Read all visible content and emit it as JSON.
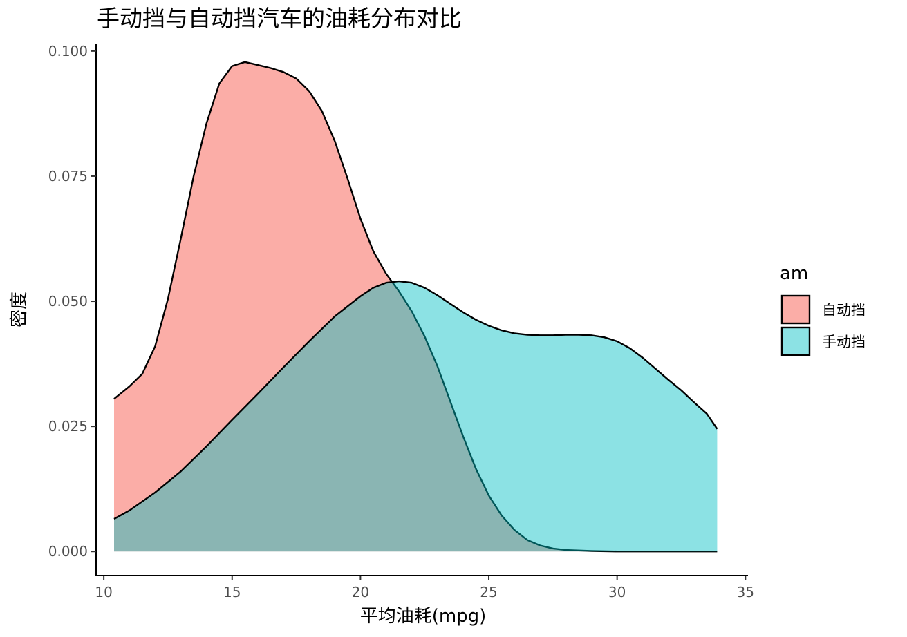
{
  "chart_data": {
    "type": "area",
    "subtype": "density",
    "title": "手动挡与自动挡汽车的油耗分布对比",
    "xlabel": "平均油耗(mpg)",
    "ylabel": "密度",
    "xlim": [
      9.7,
      35.1
    ],
    "ylim": [
      -0.0048,
      0.1015
    ],
    "x_ticks": [
      10,
      15,
      20,
      25,
      30,
      35
    ],
    "x_tick_labels": [
      "10",
      "15",
      "20",
      "25",
      "30",
      "35"
    ],
    "y_ticks": [
      0,
      0.025,
      0.05,
      0.075,
      0.1
    ],
    "y_tick_labels": [
      "0.000",
      "0.025",
      "0.050",
      "0.075",
      "0.100"
    ],
    "grid": false,
    "legend": {
      "title": "am",
      "position": "right"
    },
    "series": [
      {
        "name": "自动挡",
        "color": "#F8766D",
        "opacity": 0.6,
        "x": [
          10.4,
          11.0,
          11.5,
          12.0,
          12.5,
          13.0,
          13.5,
          14.0,
          14.5,
          15.0,
          15.5,
          16.0,
          16.5,
          17.0,
          17.5,
          18.0,
          18.5,
          19.0,
          19.5,
          20.0,
          20.5,
          21.0,
          21.5,
          22.0,
          22.5,
          23.0,
          23.5,
          24.0,
          24.5,
          25.0,
          25.5,
          26.0,
          26.5,
          27.0,
          27.5,
          28.0,
          29.0,
          30.0,
          31.0,
          32.0,
          33.0,
          33.9
        ],
        "y": [
          0.0305,
          0.033,
          0.0355,
          0.041,
          0.0505,
          0.0625,
          0.075,
          0.0855,
          0.0935,
          0.097,
          0.0978,
          0.0972,
          0.0966,
          0.0958,
          0.0945,
          0.092,
          0.088,
          0.082,
          0.0745,
          0.0665,
          0.06,
          0.0555,
          0.052,
          0.048,
          0.043,
          0.037,
          0.03,
          0.023,
          0.0165,
          0.0112,
          0.0072,
          0.0043,
          0.0023,
          0.0012,
          0.0006,
          0.0003,
          0.0001,
          0.0,
          0.0,
          0.0,
          0.0,
          0.0
        ]
      },
      {
        "name": "手动挡",
        "color": "#00BFC4",
        "opacity": 0.45,
        "x": [
          10.4,
          11.0,
          12.0,
          13.0,
          14.0,
          15.0,
          16.0,
          17.0,
          18.0,
          19.0,
          20.0,
          20.5,
          21.0,
          21.5,
          22.0,
          22.5,
          23.0,
          23.5,
          24.0,
          24.5,
          25.0,
          25.5,
          26.0,
          26.5,
          27.0,
          27.5,
          28.0,
          28.5,
          29.0,
          29.5,
          30.0,
          30.5,
          31.0,
          31.5,
          32.0,
          32.5,
          33.0,
          33.5,
          33.9
        ],
        "y": [
          0.0065,
          0.0082,
          0.0118,
          0.016,
          0.021,
          0.0263,
          0.0315,
          0.0368,
          0.042,
          0.047,
          0.051,
          0.0527,
          0.0537,
          0.054,
          0.0537,
          0.0527,
          0.0512,
          0.0495,
          0.0478,
          0.0463,
          0.0451,
          0.0442,
          0.0436,
          0.0433,
          0.0432,
          0.0432,
          0.0433,
          0.0433,
          0.0432,
          0.0428,
          0.042,
          0.0406,
          0.0387,
          0.0365,
          0.0343,
          0.0322,
          0.0298,
          0.0275,
          0.0245
        ]
      }
    ]
  }
}
